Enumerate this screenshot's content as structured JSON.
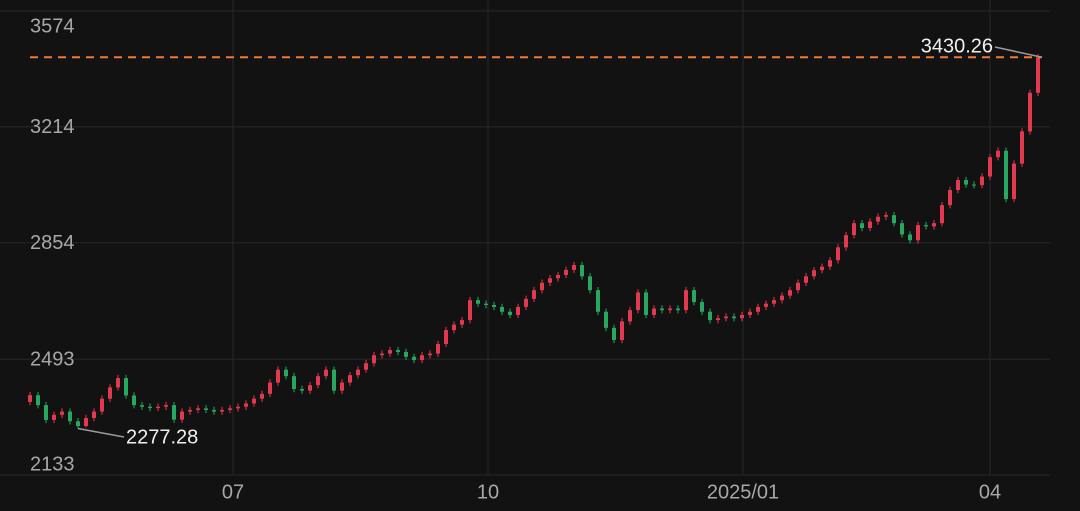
{
  "chart_data": {
    "type": "candlestick",
    "up_color": "#e2394f",
    "down_color": "#27a85f",
    "grid": true,
    "x": [
      0,
      1,
      2,
      3,
      4,
      5,
      6,
      7,
      8,
      9,
      10,
      11,
      12,
      13,
      14,
      15,
      16,
      17,
      18,
      19,
      20,
      21,
      22,
      23,
      24,
      25,
      26,
      27,
      28,
      29,
      30,
      31,
      32,
      33,
      34,
      35,
      36,
      37,
      38,
      39,
      40,
      41,
      42,
      43,
      44,
      45,
      46,
      47,
      48,
      49,
      50,
      51,
      52,
      53,
      54,
      55,
      56,
      57,
      58,
      59,
      60,
      61,
      62,
      63,
      64,
      65,
      66,
      67,
      68,
      69,
      70,
      71,
      72,
      73,
      74,
      75,
      76,
      77,
      78,
      79,
      80,
      81,
      82,
      83,
      84,
      85,
      86,
      87,
      88,
      89,
      90,
      91,
      92,
      93,
      94,
      95,
      96,
      97,
      98,
      99,
      100,
      101,
      102,
      103,
      104,
      105,
      106,
      107,
      108,
      109,
      110,
      111,
      112,
      113,
      114,
      115,
      116,
      117,
      118,
      119,
      120,
      121,
      122,
      123,
      124,
      125,
      126
    ],
    "open": [
      2360,
      2381,
      2350,
      2304,
      2320,
      2330,
      2300,
      2285,
      2310,
      2330,
      2370,
      2405,
      2434,
      2380,
      2350,
      2345,
      2341,
      2345,
      2350,
      2305,
      2330,
      2335,
      2340,
      2335,
      2330,
      2335,
      2340,
      2345,
      2355,
      2370,
      2385,
      2420,
      2460,
      2440,
      2400,
      2395,
      2412,
      2440,
      2460,
      2395,
      2420,
      2443,
      2460,
      2480,
      2505,
      2510,
      2521,
      2515,
      2500,
      2490,
      2505,
      2510,
      2540,
      2583,
      2600,
      2614,
      2676,
      2665,
      2661,
      2655,
      2640,
      2630,
      2655,
      2680,
      2707,
      2730,
      2744,
      2754,
      2770,
      2785,
      2750,
      2707,
      2640,
      2590,
      2552,
      2610,
      2645,
      2700,
      2630,
      2650,
      2645,
      2650,
      2645,
      2707,
      2670,
      2640,
      2614,
      2620,
      2625,
      2620,
      2630,
      2640,
      2655,
      2665,
      2676,
      2690,
      2707,
      2730,
      2750,
      2769,
      2780,
      2800,
      2840,
      2878,
      2915,
      2900,
      2920,
      2935,
      2940,
      2915,
      2880,
      2862,
      2909,
      2905,
      2915,
      2971,
      3018,
      3049,
      3035,
      3033,
      3060,
      3120,
      3140,
      2990,
      3100,
      3200,
      3320
    ],
    "high": [
      2391,
      2391,
      2360,
      2330,
      2340,
      2340,
      2310,
      2320,
      2340,
      2380,
      2415,
      2444,
      2444,
      2390,
      2360,
      2355,
      2355,
      2360,
      2360,
      2340,
      2345,
      2350,
      2350,
      2345,
      2345,
      2350,
      2355,
      2365,
      2380,
      2395,
      2430,
      2470,
      2470,
      2450,
      2410,
      2422,
      2450,
      2470,
      2470,
      2430,
      2453,
      2470,
      2490,
      2515,
      2520,
      2531,
      2531,
      2525,
      2510,
      2515,
      2520,
      2550,
      2593,
      2610,
      2624,
      2686,
      2686,
      2675,
      2671,
      2665,
      2650,
      2665,
      2690,
      2717,
      2740,
      2754,
      2764,
      2780,
      2795,
      2795,
      2760,
      2717,
      2650,
      2600,
      2620,
      2655,
      2710,
      2710,
      2660,
      2660,
      2660,
      2660,
      2717,
      2717,
      2680,
      2650,
      2630,
      2635,
      2635,
      2640,
      2650,
      2665,
      2675,
      2686,
      2700,
      2717,
      2740,
      2760,
      2779,
      2790,
      2810,
      2850,
      2888,
      2925,
      2925,
      2930,
      2945,
      2950,
      2950,
      2925,
      2890,
      2919,
      2919,
      2925,
      2981,
      3028,
      3059,
      3059,
      3045,
      3070,
      3130,
      3150,
      3150,
      3110,
      3210,
      3330,
      3440
    ],
    "low": [
      2350,
      2340,
      2294,
      2294,
      2310,
      2290,
      2277.28,
      2280,
      2300,
      2320,
      2360,
      2395,
      2370,
      2340,
      2335,
      2331,
      2331,
      2335,
      2295,
      2295,
      2320,
      2325,
      2325,
      2320,
      2320,
      2325,
      2330,
      2335,
      2345,
      2360,
      2375,
      2410,
      2430,
      2390,
      2385,
      2385,
      2402,
      2430,
      2385,
      2385,
      2410,
      2433,
      2450,
      2470,
      2495,
      2500,
      2505,
      2490,
      2480,
      2480,
      2495,
      2500,
      2530,
      2573,
      2590,
      2604,
      2655,
      2651,
      2645,
      2630,
      2620,
      2620,
      2645,
      2670,
      2697,
      2720,
      2734,
      2744,
      2760,
      2740,
      2697,
      2630,
      2580,
      2542,
      2542,
      2600,
      2635,
      2620,
      2620,
      2635,
      2635,
      2635,
      2635,
      2660,
      2630,
      2604,
      2604,
      2610,
      2610,
      2610,
      2620,
      2630,
      2645,
      2655,
      2666,
      2680,
      2697,
      2720,
      2740,
      2759,
      2770,
      2790,
      2830,
      2868,
      2890,
      2890,
      2910,
      2925,
      2905,
      2870,
      2852,
      2852,
      2895,
      2895,
      2905,
      2961,
      3008,
      3025,
      3023,
      3023,
      3050,
      3110,
      2980,
      2980,
      3090,
      3190,
      3310
    ],
    "close": [
      2381,
      2350,
      2304,
      2320,
      2330,
      2300,
      2285,
      2310,
      2330,
      2370,
      2405,
      2434,
      2380,
      2350,
      2345,
      2341,
      2345,
      2350,
      2305,
      2330,
      2335,
      2340,
      2335,
      2330,
      2335,
      2340,
      2345,
      2355,
      2370,
      2385,
      2420,
      2460,
      2440,
      2400,
      2395,
      2412,
      2440,
      2460,
      2395,
      2420,
      2443,
      2460,
      2480,
      2505,
      2510,
      2521,
      2515,
      2500,
      2490,
      2505,
      2510,
      2540,
      2583,
      2600,
      2614,
      2676,
      2665,
      2661,
      2655,
      2640,
      2630,
      2655,
      2680,
      2707,
      2730,
      2744,
      2754,
      2770,
      2785,
      2750,
      2707,
      2640,
      2590,
      2552,
      2610,
      2645,
      2700,
      2630,
      2650,
      2645,
      2650,
      2645,
      2707,
      2670,
      2640,
      2614,
      2620,
      2625,
      2620,
      2630,
      2640,
      2655,
      2665,
      2676,
      2690,
      2707,
      2730,
      2750,
      2769,
      2780,
      2800,
      2840,
      2878,
      2915,
      2900,
      2920,
      2935,
      2940,
      2915,
      2880,
      2862,
      2909,
      2905,
      2915,
      2971,
      3018,
      3049,
      3035,
      3033,
      3060,
      3120,
      3140,
      2990,
      3100,
      3200,
      3320,
      3430.26
    ],
    "ylim": [
      2133,
      3574
    ],
    "yticks": [
      2133,
      2493,
      2854,
      3214,
      3574
    ],
    "xlim": [
      -3.75,
      127.5
    ],
    "xticks": [
      {
        "value": 25.375,
        "label": "07"
      },
      {
        "value": 57.25,
        "label": "10"
      },
      {
        "value": 89.125,
        "label": "2025/01"
      },
      {
        "value": 120,
        "label": "04"
      }
    ],
    "last_line_color": "#f07a2e"
  }
}
